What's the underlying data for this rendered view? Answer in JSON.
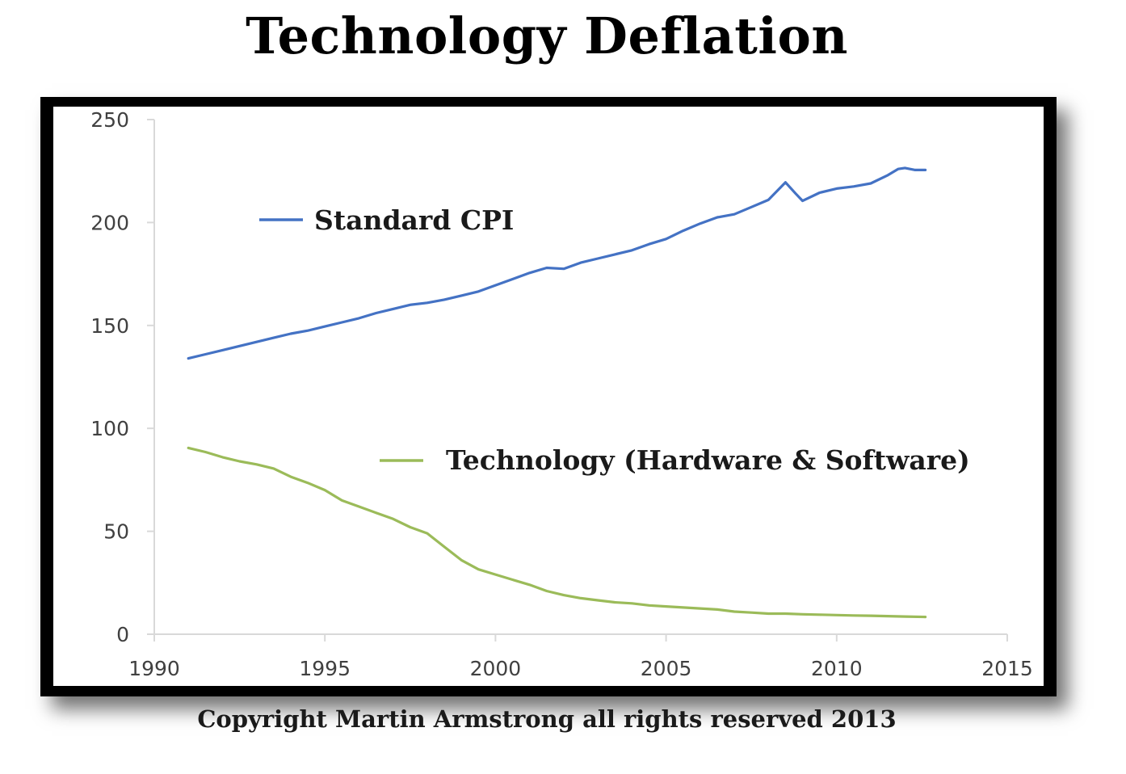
{
  "header": {
    "title": "Technology Deflation"
  },
  "footer": {
    "copyright": "Copyright Martin Armstrong all rights reserved 2013"
  },
  "colors": {
    "cpi": "#4472c4",
    "tech": "#9bbb59",
    "frame": "#000000",
    "axis": "#d9d9d9"
  },
  "chart_data": {
    "type": "line",
    "title": "Technology Deflation",
    "xlabel": "",
    "ylabel": "",
    "xlim": [
      1990,
      2015
    ],
    "ylim": [
      0,
      250
    ],
    "x_ticks": [
      1990,
      1995,
      2000,
      2005,
      2010,
      2015
    ],
    "y_ticks": [
      0,
      50,
      100,
      150,
      200,
      250
    ],
    "grid": false,
    "legend": "inline",
    "series": [
      {
        "name": "Standard CPI",
        "color": "#4472c4",
        "points": [
          [
            1991.0,
            134
          ],
          [
            1991.5,
            136
          ],
          [
            1992.0,
            138
          ],
          [
            1992.5,
            140
          ],
          [
            1993.0,
            142
          ],
          [
            1993.5,
            144
          ],
          [
            1994.0,
            146
          ],
          [
            1994.5,
            147.5
          ],
          [
            1995.0,
            149.5
          ],
          [
            1995.5,
            151.5
          ],
          [
            1996.0,
            153.5
          ],
          [
            1996.5,
            156
          ],
          [
            1997.0,
            158
          ],
          [
            1997.5,
            160
          ],
          [
            1998.0,
            161
          ],
          [
            1998.5,
            162.5
          ],
          [
            1999.0,
            164.5
          ],
          [
            1999.5,
            166.5
          ],
          [
            2000.0,
            169.5
          ],
          [
            2000.5,
            172.5
          ],
          [
            2001.0,
            175.5
          ],
          [
            2001.5,
            178
          ],
          [
            2002.0,
            177.5
          ],
          [
            2002.5,
            180.5
          ],
          [
            2003.0,
            182.5
          ],
          [
            2003.5,
            184.5
          ],
          [
            2004.0,
            186.5
          ],
          [
            2004.5,
            189.5
          ],
          [
            2005.0,
            192
          ],
          [
            2005.5,
            196
          ],
          [
            2006.0,
            199.5
          ],
          [
            2006.5,
            202.5
          ],
          [
            2007.0,
            204
          ],
          [
            2007.5,
            207.5
          ],
          [
            2008.0,
            211
          ],
          [
            2008.5,
            219.5
          ],
          [
            2008.8,
            214
          ],
          [
            2009.0,
            210.5
          ],
          [
            2009.5,
            214.5
          ],
          [
            2010.0,
            216.5
          ],
          [
            2010.5,
            217.5
          ],
          [
            2011.0,
            219
          ],
          [
            2011.5,
            223
          ],
          [
            2011.8,
            226
          ],
          [
            2012.0,
            226.5
          ],
          [
            2012.3,
            225.5
          ],
          [
            2012.6,
            225.5
          ]
        ]
      },
      {
        "name": "Technology (Hardware & Software)",
        "color": "#9bbb59",
        "points": [
          [
            1991.0,
            90.5
          ],
          [
            1991.5,
            88.5
          ],
          [
            1992.0,
            86
          ],
          [
            1992.5,
            84
          ],
          [
            1993.0,
            82.5
          ],
          [
            1993.5,
            80.5
          ],
          [
            1994.0,
            76.5
          ],
          [
            1994.5,
            73.5
          ],
          [
            1995.0,
            70
          ],
          [
            1995.5,
            65
          ],
          [
            1996.0,
            62
          ],
          [
            1996.5,
            59
          ],
          [
            1997.0,
            56
          ],
          [
            1997.5,
            52
          ],
          [
            1998.0,
            49
          ],
          [
            1998.5,
            42.5
          ],
          [
            1999.0,
            36
          ],
          [
            1999.5,
            31.5
          ],
          [
            2000.0,
            29
          ],
          [
            2000.5,
            26.5
          ],
          [
            2001.0,
            24
          ],
          [
            2001.5,
            21
          ],
          [
            2002.0,
            19
          ],
          [
            2002.5,
            17.5
          ],
          [
            2003.0,
            16.5
          ],
          [
            2003.5,
            15.5
          ],
          [
            2004.0,
            15
          ],
          [
            2004.5,
            14
          ],
          [
            2005.0,
            13.5
          ],
          [
            2005.5,
            13
          ],
          [
            2006.0,
            12.5
          ],
          [
            2006.5,
            12
          ],
          [
            2007.0,
            11
          ],
          [
            2007.5,
            10.5
          ],
          [
            2008.0,
            10
          ],
          [
            2008.5,
            10
          ],
          [
            2009.0,
            9.7
          ],
          [
            2009.5,
            9.5
          ],
          [
            2010.0,
            9.3
          ],
          [
            2010.5,
            9.1
          ],
          [
            2011.0,
            9
          ],
          [
            2011.5,
            8.8
          ],
          [
            2012.0,
            8.6
          ],
          [
            2012.6,
            8.4
          ]
        ]
      }
    ]
  }
}
